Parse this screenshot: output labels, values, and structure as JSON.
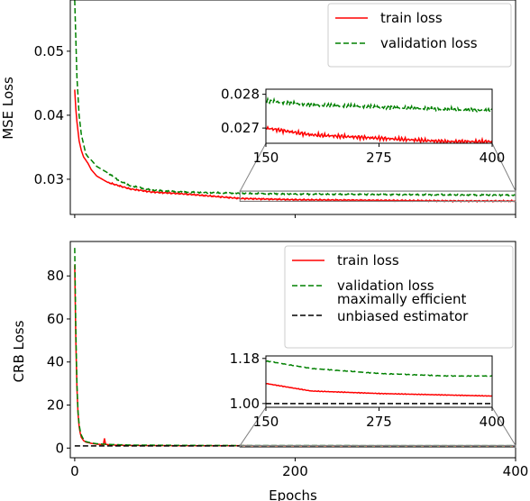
{
  "chart_data": [
    {
      "type": "line",
      "ylabel": "MSE Loss",
      "xlim": [
        -4,
        400
      ],
      "ylim": [
        0.0245,
        0.058
      ],
      "yticks": [
        0.03,
        0.04,
        0.05
      ],
      "ytick_labels": [
        "0.03",
        "0.04",
        "0.05"
      ],
      "legend_position": "top-right",
      "series": [
        {
          "name": "train loss",
          "color": "#ff0000",
          "dash": "solid",
          "points": [
            [
              0,
              0.044
            ],
            [
              1,
              0.041
            ],
            [
              2,
              0.039
            ],
            [
              4,
              0.036
            ],
            [
              6,
              0.0345
            ],
            [
              8,
              0.0335
            ],
            [
              10,
              0.033
            ],
            [
              12,
              0.0325
            ],
            [
              15,
              0.0315
            ],
            [
              20,
              0.0305
            ],
            [
              25,
              0.03
            ],
            [
              30,
              0.0295
            ],
            [
              40,
              0.029
            ],
            [
              50,
              0.0285
            ],
            [
              70,
              0.028
            ],
            [
              100,
              0.0277
            ],
            [
              150,
              0.027
            ],
            [
              200,
              0.0268
            ],
            [
              275,
              0.0267
            ],
            [
              350,
              0.0266
            ],
            [
              400,
              0.0266
            ]
          ]
        },
        {
          "name": "validation loss",
          "color": "#008000",
          "dash": "dashed",
          "points": [
            [
              0,
              0.058
            ],
            [
              1,
              0.052
            ],
            [
              2,
              0.046
            ],
            [
              4,
              0.04
            ],
            [
              6,
              0.037
            ],
            [
              8,
              0.0355
            ],
            [
              10,
              0.034
            ],
            [
              12,
              0.0335
            ],
            [
              15,
              0.033
            ],
            [
              20,
              0.032
            ],
            [
              25,
              0.0315
            ],
            [
              30,
              0.031
            ],
            [
              40,
              0.0298
            ],
            [
              50,
              0.029
            ],
            [
              70,
              0.0283
            ],
            [
              100,
              0.028
            ],
            [
              150,
              0.0278
            ],
            [
              200,
              0.02768
            ],
            [
              275,
              0.02762
            ],
            [
              350,
              0.02755
            ],
            [
              400,
              0.02752
            ]
          ]
        }
      ],
      "inset": {
        "xlim": [
          150,
          400
        ],
        "ylim": [
          0.02655,
          0.02815
        ],
        "xticks": [
          150,
          275,
          400
        ],
        "xtick_labels": [
          "150",
          "275",
          "400"
        ],
        "yticks": [
          0.027,
          0.028
        ],
        "ytick_labels": [
          "0.027",
          "0.028"
        ]
      }
    },
    {
      "type": "line",
      "xlabel": "Epochs",
      "ylabel": "CRB Loss",
      "xlim": [
        -4,
        400
      ],
      "ylim": [
        -4.5,
        96
      ],
      "xticks": [
        0,
        200,
        400
      ],
      "xtick_labels": [
        "0",
        "200",
        "400"
      ],
      "yticks": [
        0,
        20,
        40,
        60,
        80
      ],
      "ytick_labels": [
        "0",
        "20",
        "40",
        "60",
        "80"
      ],
      "legend_position": "top-right",
      "series": [
        {
          "name": "train loss",
          "color": "#ff0000",
          "dash": "solid",
          "points": [
            [
              0,
              85
            ],
            [
              1,
              50
            ],
            [
              2,
              28
            ],
            [
              3,
              16
            ],
            [
              4,
              10
            ],
            [
              5,
              7
            ],
            [
              6,
              5
            ],
            [
              8,
              3.5
            ],
            [
              10,
              2.8
            ],
            [
              15,
              2.2
            ],
            [
              20,
              1.8
            ],
            [
              26,
              1.6
            ],
            [
              27,
              4.5
            ],
            [
              28,
              1.7
            ],
            [
              35,
              1.4
            ],
            [
              50,
              1.2
            ],
            [
              100,
              1.1
            ],
            [
              150,
              1.08
            ],
            [
              200,
              1.05
            ],
            [
              275,
              1.04
            ],
            [
              400,
              1.03
            ]
          ]
        },
        {
          "name": "validation loss",
          "color": "#008000",
          "dash": "dashed",
          "points": [
            [
              0,
              93
            ],
            [
              1,
              55
            ],
            [
              2,
              30
            ],
            [
              3,
              17
            ],
            [
              4,
              11
            ],
            [
              5,
              8
            ],
            [
              6,
              6
            ],
            [
              8,
              4
            ],
            [
              10,
              3
            ],
            [
              15,
              2.4
            ],
            [
              20,
              2
            ],
            [
              30,
              1.7
            ],
            [
              50,
              1.4
            ],
            [
              100,
              1.25
            ],
            [
              150,
              1.17
            ],
            [
              200,
              1.14
            ],
            [
              275,
              1.12
            ],
            [
              350,
              1.11
            ],
            [
              400,
              1.11
            ]
          ]
        },
        {
          "name": "maximally efficient unbiased estimator",
          "color": "#000000",
          "dash": "dashed",
          "points": [
            [
              0,
              1.0
            ],
            [
              400,
              1.0
            ]
          ]
        }
      ],
      "inset": {
        "xlim": [
          150,
          400
        ],
        "ylim": [
          0.985,
          1.19
        ],
        "xticks": [
          150,
          275,
          400
        ],
        "xtick_labels": [
          "150",
          "275",
          "400"
        ],
        "yticks": [
          1.0,
          1.18
        ],
        "ytick_labels": [
          "1.00",
          "1.18"
        ]
      }
    }
  ]
}
